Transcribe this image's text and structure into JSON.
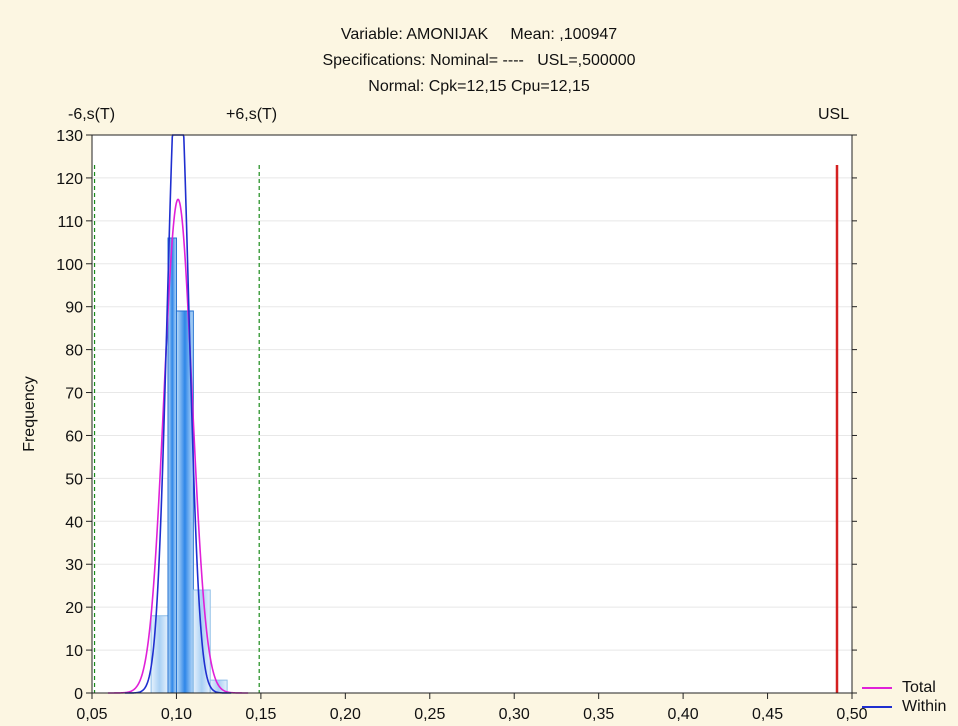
{
  "title": {
    "line1": "Variable: AMONIJAK     Mean: ,100947",
    "line2": "Specifications: Nominal= ----   USL=,500000",
    "line3": "Normal: Cpk=12,15 Cpu=12,15"
  },
  "markers": {
    "minus6s": "-6,s(T)",
    "plus6s": "+6,s(T)",
    "usl": "USL"
  },
  "chart_data": {
    "type": "bar",
    "ylabel": "Frequency",
    "xlim": [
      0.05,
      0.5
    ],
    "ylim": [
      0,
      130
    ],
    "x_ticks": [
      0.05,
      0.1,
      0.15,
      0.2,
      0.25,
      0.3,
      0.35,
      0.4,
      0.45,
      0.5
    ],
    "x_tick_labels": [
      "0,05",
      "0,10",
      "0,15",
      "0,20",
      "0,25",
      "0,30",
      "0,35",
      "0,40",
      "0,45",
      "0,50"
    ],
    "y_ticks": [
      0,
      10,
      20,
      30,
      40,
      50,
      60,
      70,
      80,
      90,
      100,
      110,
      120,
      130
    ],
    "bins": [
      {
        "from": 0.085,
        "to": 0.095,
        "count": 18
      },
      {
        "from": 0.095,
        "to": 0.1,
        "count": 106
      },
      {
        "from": 0.1,
        "to": 0.11,
        "count": 89
      },
      {
        "from": 0.11,
        "to": 0.12,
        "count": 24
      },
      {
        "from": 0.12,
        "to": 0.13,
        "count": 3
      }
    ],
    "spec_lines": {
      "minus6s": 0.0515,
      "plus6s": 0.149,
      "usl": 0.5,
      "height": 123
    },
    "curves": [
      {
        "name": "Total",
        "color": "#e020d8",
        "mean": 0.100947,
        "peak": 115,
        "sd": 0.0083
      },
      {
        "name": "Within",
        "color": "#1f2fd0",
        "mean": 0.100947,
        "peak": 150,
        "sd": 0.0063
      }
    ],
    "legend_position": "bottom-right",
    "grid": "horizontal"
  }
}
